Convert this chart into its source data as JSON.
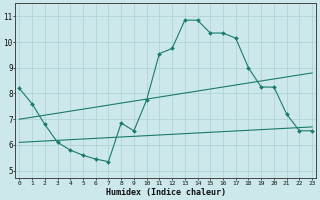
{
  "xlabel": "Humidex (Indice chaleur)",
  "background_color": "#cce8ea",
  "grid_color": "#b0d4d6",
  "line_color": "#1a7a6e",
  "x_ticks": [
    0,
    1,
    2,
    3,
    4,
    5,
    6,
    7,
    8,
    9,
    10,
    11,
    12,
    13,
    14,
    15,
    16,
    17,
    18,
    19,
    20,
    21,
    22,
    23
  ],
  "y_ticks": [
    5,
    6,
    7,
    8,
    9,
    10,
    11
  ],
  "ylim": [
    4.7,
    11.5
  ],
  "xlim": [
    -0.3,
    23.3
  ],
  "curve1_x": [
    0,
    1,
    2,
    3,
    4,
    5,
    6,
    7,
    8,
    9,
    10,
    11,
    12,
    13,
    14,
    15,
    16,
    17,
    18,
    19,
    20,
    21,
    22,
    23
  ],
  "curve1_y": [
    8.2,
    7.6,
    6.8,
    6.1,
    5.8,
    5.6,
    5.45,
    5.35,
    6.85,
    6.55,
    7.75,
    9.55,
    9.75,
    10.85,
    10.85,
    10.35,
    10.35,
    10.15,
    9.0,
    8.25,
    8.25,
    7.2,
    6.55,
    6.55
  ],
  "curve2_x": [
    0,
    23
  ],
  "curve2_y": [
    7.0,
    8.8
  ],
  "curve3_x": [
    0,
    23
  ],
  "curve3_y": [
    6.1,
    6.7
  ]
}
